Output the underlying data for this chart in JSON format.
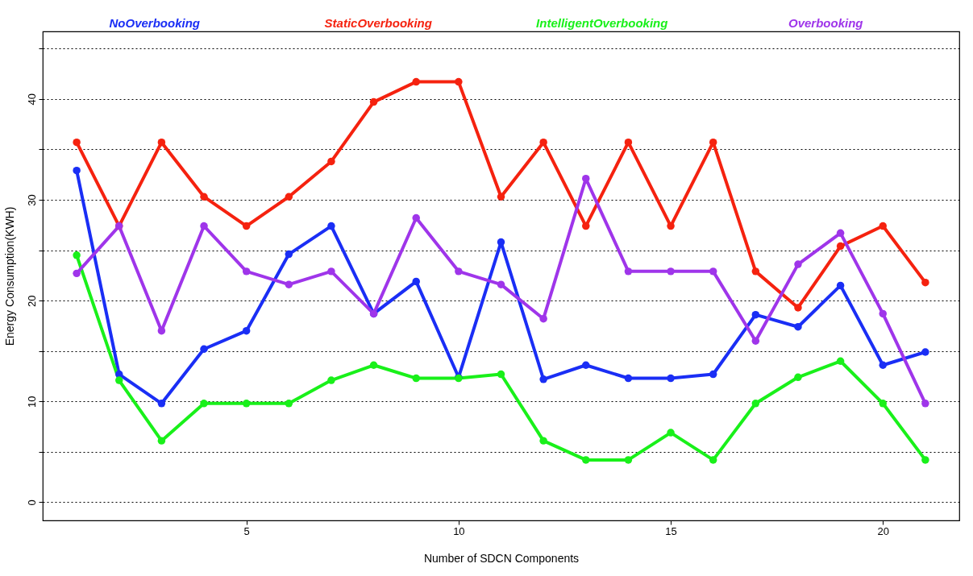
{
  "chart_data": {
    "type": "line",
    "xlabel": "Number of SDCN Components",
    "ylabel": "Energy Consumption(KWH)",
    "x": [
      1,
      2,
      3,
      4,
      5,
      6,
      7,
      8,
      9,
      10,
      11,
      12,
      13,
      14,
      15,
      16,
      17,
      18,
      19,
      20,
      21
    ],
    "series": [
      {
        "name": "NoOverbooking",
        "color": "#1a2ef5",
        "values": [
          32.9,
          12.7,
          9.8,
          15.2,
          17.0,
          24.6,
          27.4,
          18.7,
          21.9,
          12.4,
          25.8,
          12.2,
          13.6,
          12.3,
          12.3,
          12.7,
          18.6,
          17.4,
          21.5,
          13.6,
          14.9
        ]
      },
      {
        "name": "StaticOverbooking",
        "color": "#f5220f",
        "values": [
          35.7,
          27.4,
          35.7,
          30.3,
          27.4,
          30.3,
          33.8,
          39.7,
          41.7,
          41.7,
          30.3,
          35.7,
          27.4,
          35.7,
          27.4,
          35.7,
          22.9,
          19.3,
          25.4,
          27.4,
          21.8
        ]
      },
      {
        "name": "IntelligentOverbooking",
        "color": "#19f01a",
        "values": [
          24.5,
          12.1,
          6.1,
          9.8,
          9.8,
          9.8,
          12.1,
          13.6,
          12.3,
          12.3,
          12.7,
          6.1,
          4.2,
          4.2,
          6.9,
          4.2,
          9.8,
          12.4,
          14.0,
          9.8,
          4.2
        ]
      },
      {
        "name": "Overbooking",
        "color": "#9f35ea",
        "values": [
          22.7,
          27.4,
          17.0,
          27.4,
          22.9,
          21.6,
          22.9,
          18.7,
          28.2,
          22.9,
          21.6,
          18.2,
          32.1,
          22.9,
          22.9,
          22.9,
          16.0,
          23.6,
          26.7,
          18.7,
          9.8
        ]
      }
    ],
    "xlim": [
      0.2,
      21.8
    ],
    "xticks": [
      5,
      10,
      15,
      20
    ],
    "ylim": [
      -1.8,
      46.7
    ],
    "yticks": [
      0,
      {
        "value": 5,
        "label": null
      },
      10,
      {
        "value": 15,
        "label": null
      },
      20,
      {
        "value": 25,
        "label": null
      },
      30,
      {
        "value": 35,
        "label": null
      },
      40,
      {
        "value": 45,
        "label": null
      }
    ],
    "grid": "y",
    "legend": "top",
    "marker": "circle",
    "line_style": "solid"
  }
}
